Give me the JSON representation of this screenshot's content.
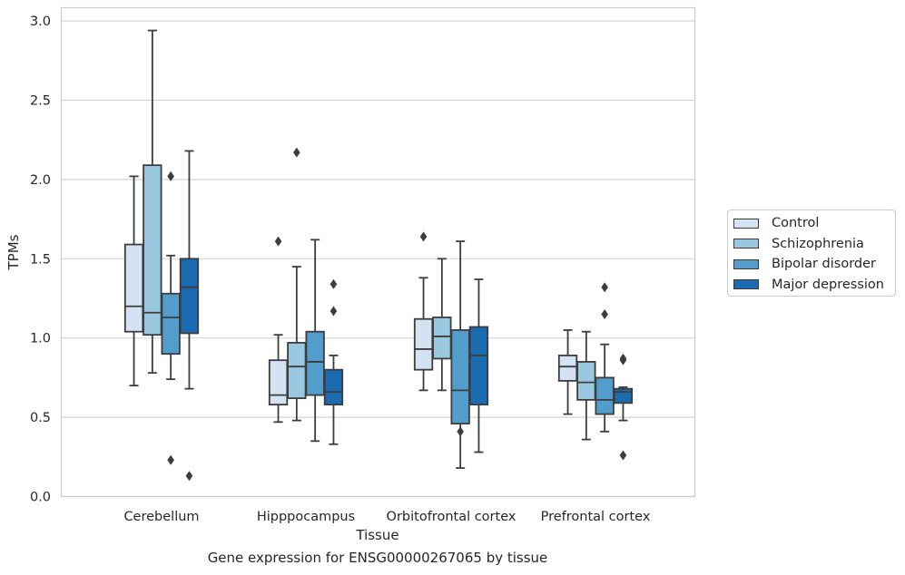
{
  "chart_data": {
    "type": "box",
    "title": "",
    "xlabel": "Tissue",
    "ylabel": "TPMs",
    "caption": "Gene expression for ENSG00000267065 by tissue",
    "ylim": [
      0,
      3.08
    ],
    "yticks": [
      0.0,
      0.5,
      1.0,
      1.5,
      2.0,
      2.5,
      3.0
    ],
    "ytick_labels": [
      "0.0",
      "0.5",
      "1.0",
      "1.5",
      "2.0",
      "2.5",
      "3.0"
    ],
    "grid": true,
    "legend_position": "right",
    "categories": [
      "Cerebellum",
      "Hipppocampus",
      "Orbitofrontal cortex",
      "Prefrontal cortex"
    ],
    "series": [
      {
        "name": "Control",
        "color": "#d3e3f3",
        "boxes": [
          {
            "whislo": 0.7,
            "q1": 1.04,
            "med": 1.2,
            "q3": 1.59,
            "whishi": 2.02,
            "fliers": []
          },
          {
            "whislo": 0.47,
            "q1": 0.58,
            "med": 0.64,
            "q3": 0.86,
            "whishi": 1.02,
            "fliers": [
              1.61
            ]
          },
          {
            "whislo": 0.67,
            "q1": 0.8,
            "med": 0.93,
            "q3": 1.12,
            "whishi": 1.38,
            "fliers": [
              1.64
            ]
          },
          {
            "whislo": 0.52,
            "q1": 0.73,
            "med": 0.82,
            "q3": 0.89,
            "whishi": 1.05,
            "fliers": []
          }
        ]
      },
      {
        "name": "Schizophrenia",
        "color": "#9ac8e0",
        "boxes": [
          {
            "whislo": 0.78,
            "q1": 1.02,
            "med": 1.16,
            "q3": 2.09,
            "whishi": 2.94,
            "fliers": []
          },
          {
            "whislo": 0.48,
            "q1": 0.62,
            "med": 0.82,
            "q3": 0.97,
            "whishi": 1.45,
            "fliers": [
              2.17
            ]
          },
          {
            "whislo": 0.67,
            "q1": 0.87,
            "med": 1.01,
            "q3": 1.13,
            "whishi": 1.5,
            "fliers": []
          },
          {
            "whislo": 0.36,
            "q1": 0.61,
            "med": 0.72,
            "q3": 0.85,
            "whishi": 1.04,
            "fliers": []
          }
        ]
      },
      {
        "name": "Bipolar disorder",
        "color": "#529dcc",
        "boxes": [
          {
            "whislo": 0.74,
            "q1": 0.9,
            "med": 1.13,
            "q3": 1.28,
            "whishi": 1.52,
            "fliers": [
              2.02,
              0.23
            ]
          },
          {
            "whislo": 0.35,
            "q1": 0.64,
            "med": 0.85,
            "q3": 1.04,
            "whishi": 1.62,
            "fliers": []
          },
          {
            "whislo": 0.18,
            "q1": 0.46,
            "med": 0.67,
            "q3": 1.05,
            "whishi": 1.61,
            "fliers": [
              0.41
            ]
          },
          {
            "whislo": 0.41,
            "q1": 0.52,
            "med": 0.61,
            "q3": 0.75,
            "whishi": 0.96,
            "fliers": [
              1.32,
              1.15
            ]
          }
        ]
      },
      {
        "name": "Major depression",
        "color": "#1c6aaf",
        "boxes": [
          {
            "whislo": 0.68,
            "q1": 1.03,
            "med": 1.32,
            "q3": 1.5,
            "whishi": 2.18,
            "fliers": [
              0.13
            ]
          },
          {
            "whislo": 0.33,
            "q1": 0.58,
            "med": 0.66,
            "q3": 0.8,
            "whishi": 0.89,
            "fliers": [
              1.34,
              1.17
            ]
          },
          {
            "whislo": 0.28,
            "q1": 0.58,
            "med": 0.89,
            "q3": 1.07,
            "whishi": 1.37,
            "fliers": []
          },
          {
            "whislo": 0.48,
            "q1": 0.59,
            "med": 0.66,
            "q3": 0.68,
            "whishi": 0.69,
            "fliers": [
              0.87,
              0.86,
              0.26
            ]
          }
        ]
      }
    ]
  }
}
